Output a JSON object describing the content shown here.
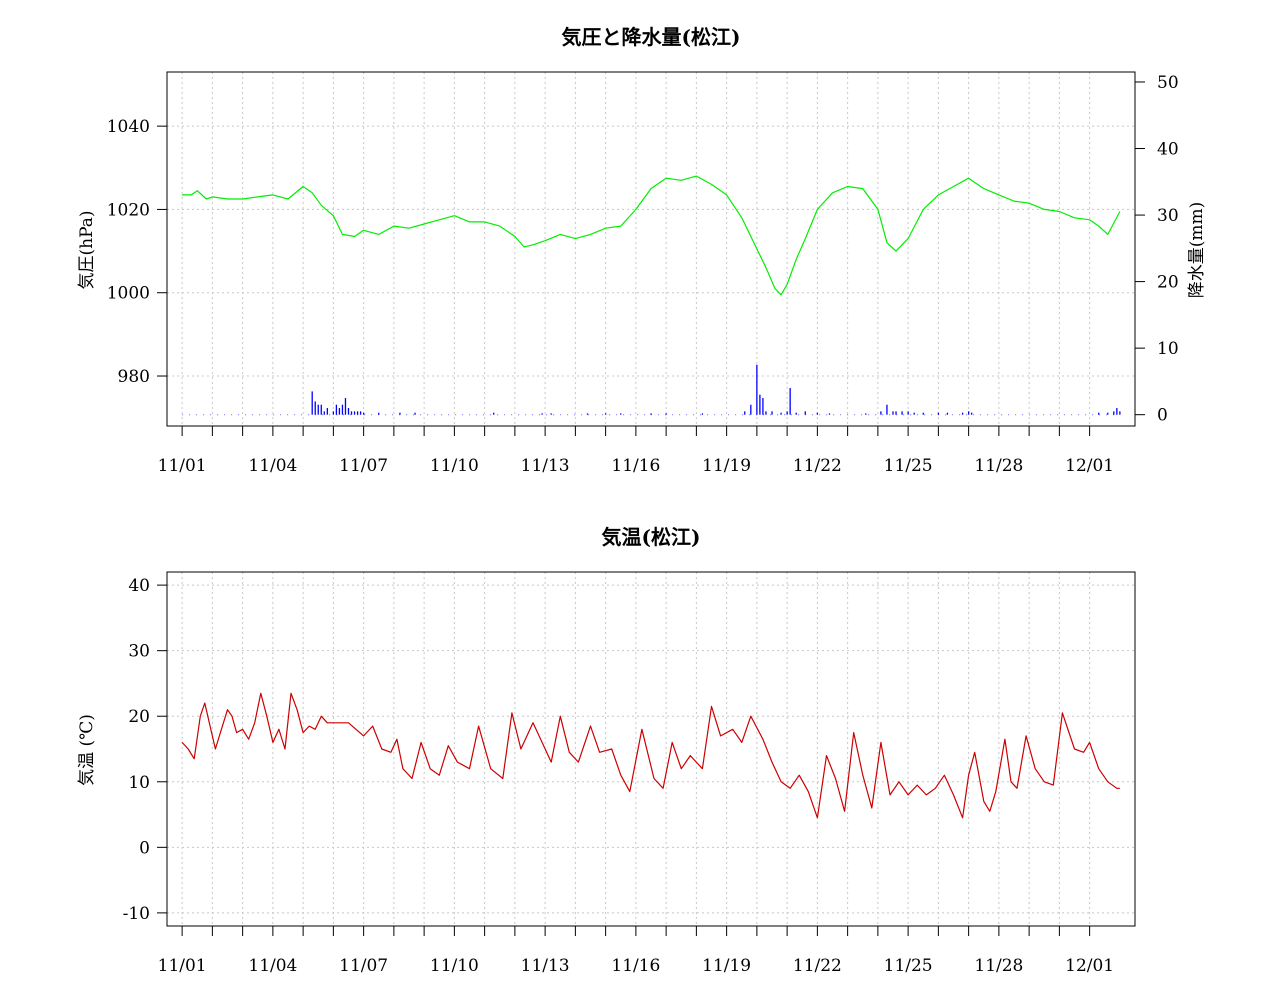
{
  "chart_data": [
    {
      "type": "line",
      "title": "気圧と降水量(松江)",
      "ylabel": "気圧(hPa)",
      "y2label": "降水量(mm)",
      "ylim": [
        968,
        1053
      ],
      "y2lim": [
        -1.7,
        51.5
      ],
      "yticks": [
        980,
        1000,
        1020,
        1040
      ],
      "y2ticks": [
        0,
        10,
        20,
        30,
        40,
        50
      ],
      "xlim": [
        -0.5,
        31.5
      ],
      "xticks": [
        "11/01",
        "11/04",
        "11/07",
        "11/10",
        "11/13",
        "11/16",
        "11/19",
        "11/22",
        "11/25",
        "11/28",
        "12/01"
      ],
      "grid": true,
      "series": [
        {
          "kind": "line",
          "axis": "left",
          "color": "#00ee00",
          "x": [
            0,
            0.3,
            0.5,
            0.8,
            1.0,
            1.5,
            2.0,
            2.5,
            3.0,
            3.5,
            4.0,
            4.3,
            4.6,
            5.0,
            5.3,
            5.7,
            6.0,
            6.5,
            7.0,
            7.5,
            8.0,
            8.5,
            9.0,
            9.5,
            10.0,
            10.5,
            11.0,
            11.3,
            11.6,
            12.0,
            12.5,
            13.0,
            13.5,
            14.0,
            14.5,
            15.0,
            15.5,
            16.0,
            16.5,
            17.0,
            17.5,
            18.0,
            18.5,
            19.0,
            19.3,
            19.6,
            19.8,
            20.0,
            20.3,
            20.6,
            21.0,
            21.5,
            22.0,
            22.5,
            23.0,
            23.3,
            23.6,
            24.0,
            24.5,
            25.0,
            25.5,
            26.0,
            26.5,
            27.0,
            27.5,
            28.0,
            28.5,
            29.0,
            29.5,
            30.0,
            30.3,
            30.6,
            31.0
          ],
          "y": [
            1023.5,
            1023.5,
            1024.5,
            1022.5,
            1023,
            1022.5,
            1022.5,
            1023,
            1023.5,
            1022.5,
            1025.5,
            1024,
            1021,
            1018.5,
            1014,
            1013.5,
            1015,
            1014,
            1016,
            1015.5,
            1016.5,
            1017.5,
            1018.5,
            1017,
            1017,
            1016,
            1013.5,
            1011,
            1011.5,
            1012.5,
            1014,
            1013,
            1014,
            1015.5,
            1016,
            1020,
            1025,
            1027.5,
            1027,
            1028,
            1026,
            1023.5,
            1018,
            1010.5,
            1006,
            1001,
            999.5,
            1002,
            1008,
            1013,
            1020,
            1024,
            1025.5,
            1025,
            1020,
            1012,
            1010,
            1013,
            1020,
            1023.5,
            1025.5,
            1027.5,
            1025,
            1023.5,
            1022,
            1021.5,
            1020,
            1019.5,
            1018,
            1017.5,
            1016,
            1014,
            1019.5
          ]
        },
        {
          "kind": "bar",
          "axis": "right",
          "color": "#0000ff",
          "x": [
            4.3,
            4.4,
            4.5,
            4.6,
            4.7,
            4.8,
            5.0,
            5.1,
            5.2,
            5.3,
            5.4,
            5.5,
            5.6,
            5.7,
            5.8,
            5.9,
            6.0,
            6.5,
            7.2,
            7.7,
            10.3,
            11.9,
            12.2,
            13.4,
            14.0,
            14.5,
            15.5,
            16.0,
            17.2,
            18.6,
            18.8,
            19.0,
            19.1,
            19.2,
            19.3,
            19.5,
            19.8,
            20.0,
            20.1,
            20.3,
            20.6,
            21.0,
            21.4,
            22.6,
            23.1,
            23.3,
            23.5,
            23.6,
            23.8,
            24.0,
            24.2,
            24.5,
            25.0,
            25.3,
            25.8,
            26.0,
            26.1,
            30.3,
            30.6,
            30.8,
            30.9,
            31.0
          ],
          "values": [
            3.5,
            2,
            1.5,
            1.5,
            0.5,
            1,
            0.5,
            1.5,
            1,
            1.5,
            2.5,
            1,
            0.5,
            0.5,
            0.5,
            0.5,
            0.3,
            0.3,
            0.3,
            0.3,
            0.3,
            0.2,
            0.2,
            0.2,
            0.2,
            0.2,
            0.2,
            0.2,
            0.2,
            0.5,
            1.5,
            7.5,
            3,
            2.5,
            0.5,
            0.5,
            0.3,
            0.5,
            4,
            0.3,
            0.5,
            0.3,
            0.2,
            0.2,
            0.5,
            1.5,
            0.5,
            0.5,
            0.5,
            0.5,
            0.3,
            0.3,
            0.3,
            0.3,
            0.3,
            0.5,
            0.3,
            0.3,
            0.3,
            0.5,
            1,
            0.5
          ]
        }
      ]
    },
    {
      "type": "line",
      "title": "気温(松江)",
      "ylabel": "気温 (℃)",
      "ylim": [
        -12,
        42
      ],
      "yticks": [
        -10,
        0,
        10,
        20,
        30,
        40
      ],
      "xlim": [
        -0.5,
        31.5
      ],
      "xticks": [
        "11/01",
        "11/04",
        "11/07",
        "11/10",
        "11/13",
        "11/16",
        "11/19",
        "11/22",
        "11/25",
        "11/28",
        "12/01"
      ],
      "grid": true,
      "series": [
        {
          "kind": "line",
          "axis": "left",
          "color": "#cc0000",
          "x": [
            0,
            0.2,
            0.4,
            0.6,
            0.75,
            0.9,
            1.1,
            1.3,
            1.5,
            1.65,
            1.8,
            2.0,
            2.2,
            2.4,
            2.6,
            2.8,
            3.0,
            3.2,
            3.4,
            3.6,
            3.8,
            4.0,
            4.2,
            4.4,
            4.6,
            4.8,
            5.0,
            5.5,
            6.0,
            6.3,
            6.6,
            6.9,
            7.1,
            7.3,
            7.6,
            7.9,
            8.2,
            8.5,
            8.8,
            9.1,
            9.5,
            9.8,
            10.2,
            10.6,
            10.9,
            11.2,
            11.6,
            11.9,
            12.2,
            12.5,
            12.8,
            13.1,
            13.5,
            13.8,
            14.2,
            14.5,
            14.8,
            15.2,
            15.6,
            15.9,
            16.2,
            16.5,
            16.8,
            17.2,
            17.5,
            17.8,
            18.2,
            18.5,
            18.8,
            19.2,
            19.5,
            19.8,
            20.1,
            20.4,
            20.7,
            21.0,
            21.3,
            21.6,
            21.9,
            22.2,
            22.5,
            22.8,
            23.1,
            23.4,
            23.7,
            24.0,
            24.3,
            24.6,
            24.9,
            25.2,
            25.5,
            25.8,
            26.0,
            26.2,
            26.5,
            26.7,
            26.9,
            27.2,
            27.4,
            27.6,
            27.9,
            28.2,
            28.5,
            28.8,
            29.1,
            29.5,
            29.8,
            30.0,
            30.3,
            30.6,
            30.9,
            31.0
          ],
          "y": [
            16,
            15,
            13.5,
            20,
            22,
            19,
            15,
            18,
            21,
            20,
            17.5,
            18,
            16.5,
            19,
            23.5,
            20,
            16,
            18,
            15,
            23.5,
            21,
            17.5,
            18.5,
            18,
            20,
            19,
            19,
            19,
            17,
            18.5,
            15,
            14.5,
            16.5,
            12,
            10.5,
            16,
            12,
            11,
            15.5,
            13,
            12,
            18.5,
            12,
            10.5,
            20.5,
            15,
            19,
            16,
            13,
            20,
            14.5,
            13,
            18.5,
            14.5,
            15,
            11,
            8.5,
            18,
            10.5,
            9,
            16,
            12,
            14,
            12,
            21.5,
            17,
            18,
            16,
            20,
            16.5,
            13,
            10,
            9,
            11,
            8.5,
            4.5,
            14,
            10.5,
            5.5,
            17.5,
            11,
            6,
            16,
            8,
            10,
            8,
            9.5,
            8,
            9,
            11,
            8,
            4.5,
            11,
            14.5,
            7,
            5.5,
            8.5,
            16.5,
            10,
            9,
            17,
            12,
            10,
            9.5,
            20.5,
            15,
            14.5,
            16,
            12,
            10,
            9,
            9
          ]
        }
      ]
    }
  ]
}
